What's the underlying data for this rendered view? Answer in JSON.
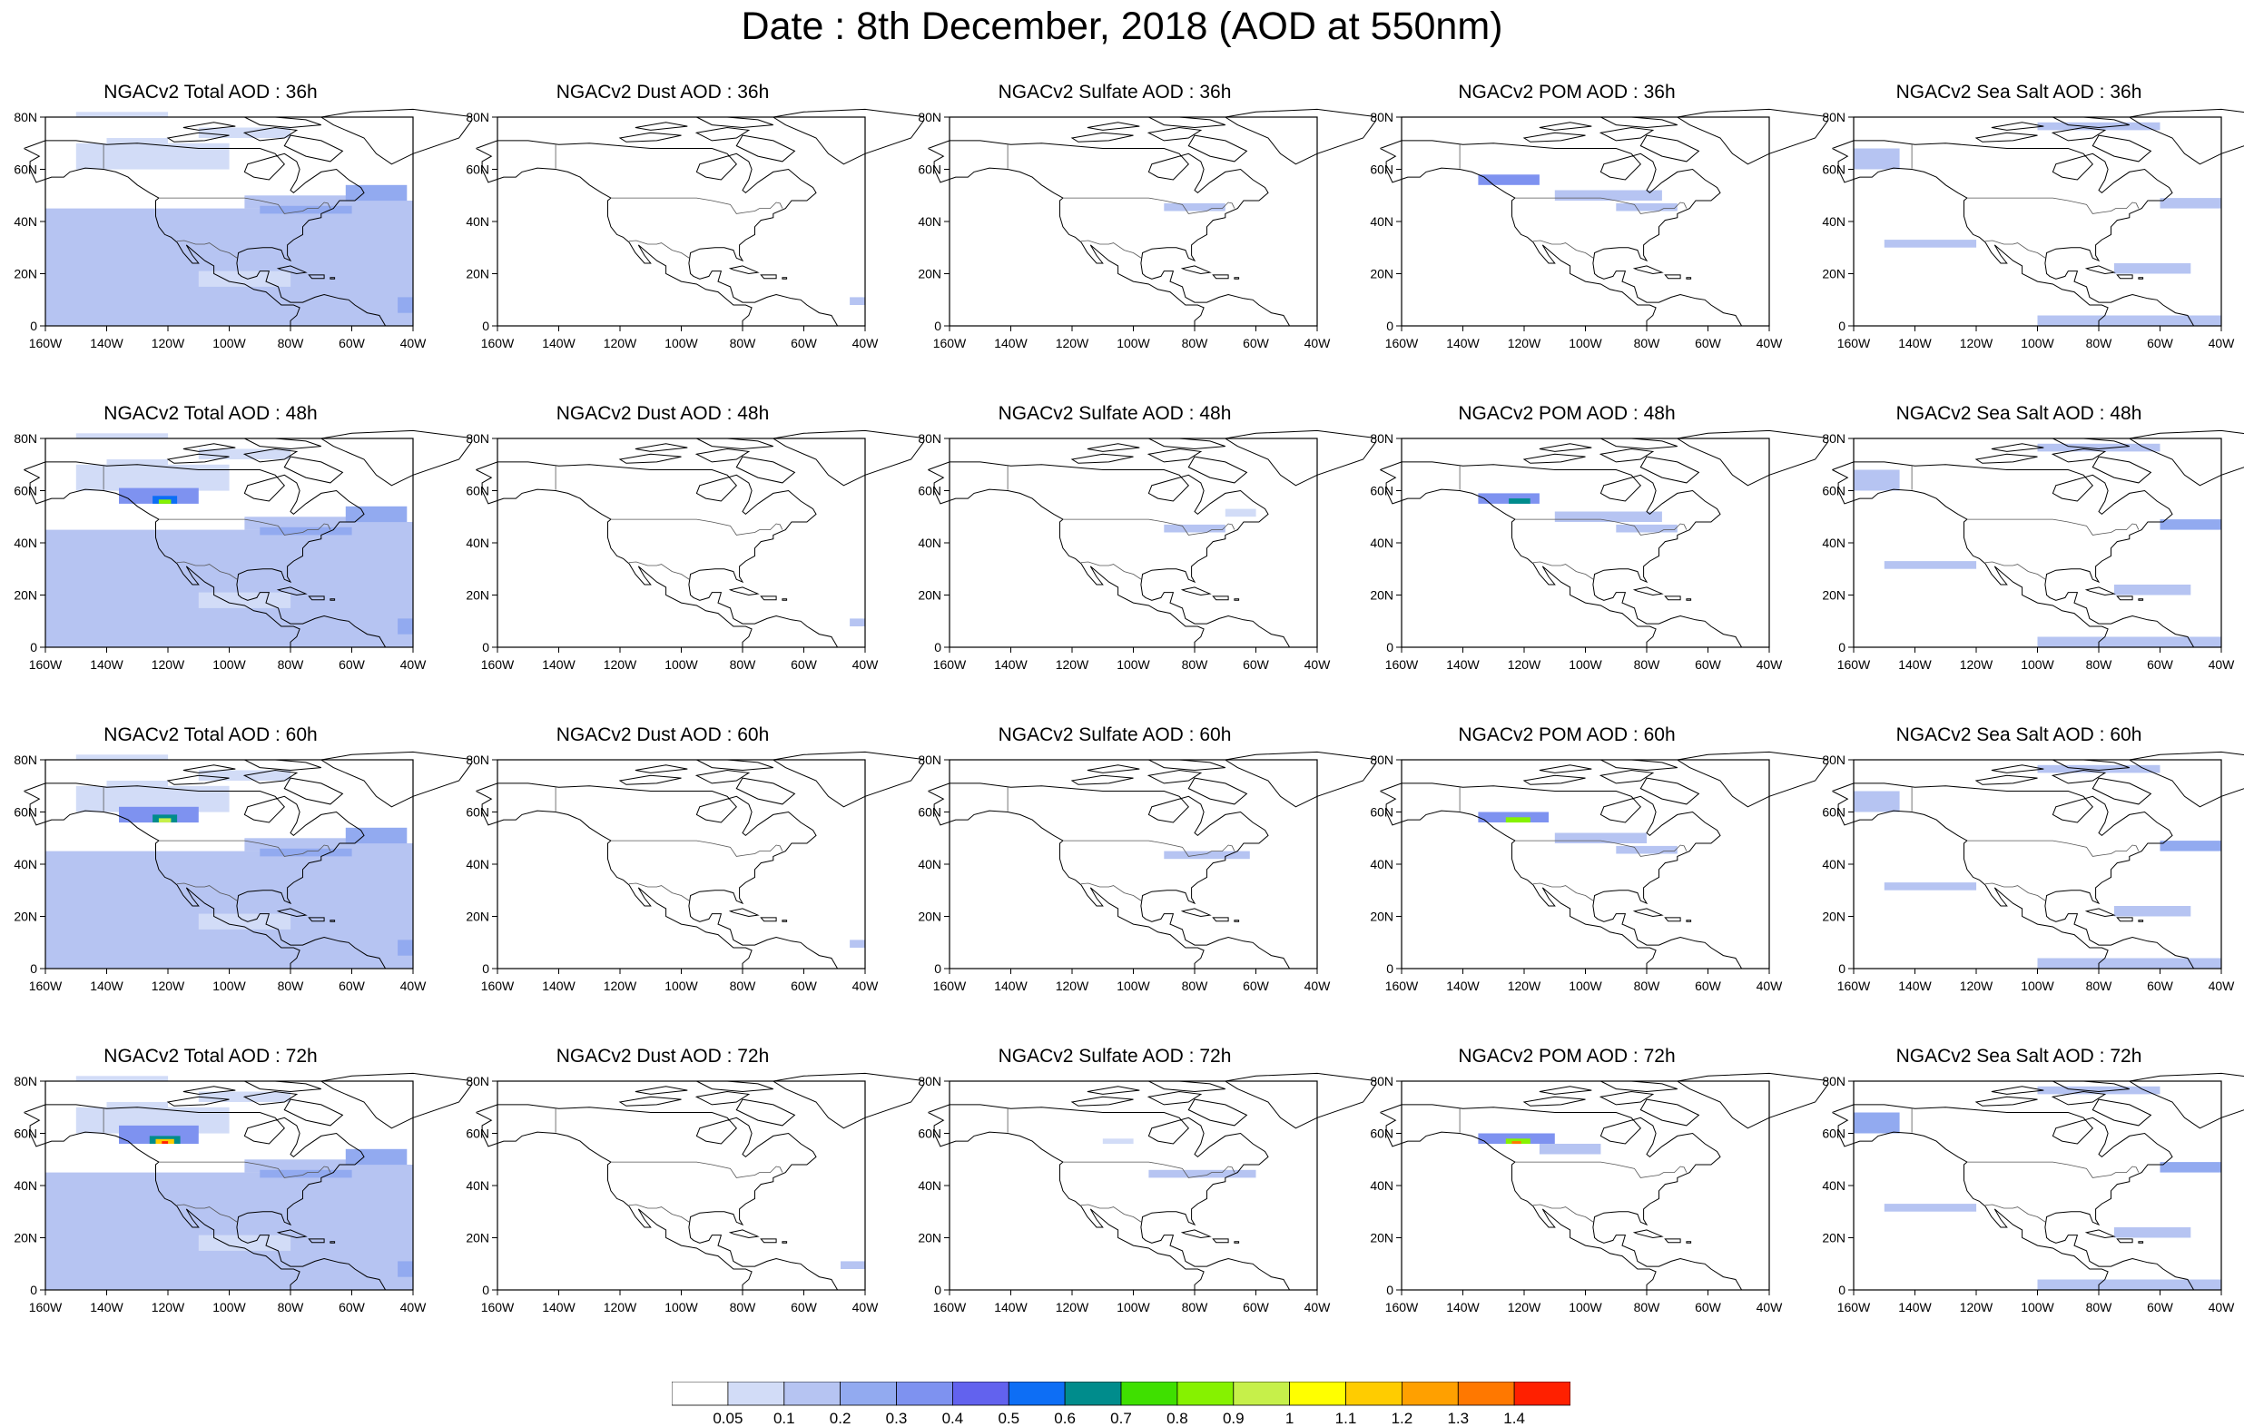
{
  "title": "Date : 8th December, 2018 (AOD at 550nm)",
  "lat_labels": [
    "80N",
    "60N",
    "40N",
    "20N",
    "0"
  ],
  "lon_labels": [
    "160W",
    "140W",
    "120W",
    "100W",
    "80W",
    "60W",
    "40W"
  ],
  "species": [
    {
      "key": "total",
      "name": "Total"
    },
    {
      "key": "dust",
      "name": "Dust"
    },
    {
      "key": "sulfate",
      "name": "Sulfate"
    },
    {
      "key": "pom",
      "name": "POM"
    },
    {
      "key": "seasalt",
      "name": "Sea Salt"
    }
  ],
  "panels": [
    [
      "NGACv2 Total AOD : 36h",
      "NGACv2 Dust AOD : 36h",
      "NGACv2 Sulfate AOD : 36h",
      "NGACv2 POM AOD : 36h",
      "NGACv2 Sea Salt AOD : 36h"
    ],
    [
      "NGACv2 Total AOD : 48h",
      "NGACv2 Dust AOD : 48h",
      "NGACv2 Sulfate AOD : 48h",
      "NGACv2 POM AOD : 48h",
      "NGACv2 Sea Salt AOD : 48h"
    ],
    [
      "NGACv2 Total AOD : 60h",
      "NGACv2 Dust AOD : 60h",
      "NGACv2 Sulfate AOD : 60h",
      "NGACv2 POM AOD : 60h",
      "NGACv2 Sea Salt AOD : 60h"
    ],
    [
      "NGACv2 Total AOD : 72h",
      "NGACv2 Dust AOD : 72h",
      "NGACv2 Sulfate AOD : 72h",
      "NGACv2 POM AOD : 72h",
      "NGACv2 Sea Salt  AOD : 72h"
    ]
  ],
  "colorbar": {
    "labels": [
      "0.05",
      "0.1",
      "0.2",
      "0.3",
      "0.4",
      "0.5",
      "0.6",
      "0.7",
      "0.8",
      "0.9",
      "1",
      "1.1",
      "1.2",
      "1.3",
      "1.4"
    ],
    "colors": [
      "#ffffff",
      "#d2dcf7",
      "#b6c4f2",
      "#92aaf0",
      "#7e92f0",
      "#6262ee",
      "#0d6ef5",
      "#008c8c",
      "#3fe000",
      "#86f200",
      "#c6f04a",
      "#ffff00",
      "#ffcc00",
      "#ffa000",
      "#ff7800",
      "#ff2000"
    ]
  },
  "features": {
    "total": [
      [
        [
          0,
          45,
          -160,
          -40,
          0.1
        ],
        [
          0,
          6,
          -160,
          -40,
          0.1
        ],
        [
          20,
          6,
          -150,
          -120,
          0.1
        ],
        [
          30,
          8,
          -130,
          -105,
          0.1
        ],
        [
          45,
          5,
          -95,
          -60,
          0.1
        ],
        [
          40,
          8,
          -60,
          -40,
          0.1
        ],
        [
          30,
          3,
          -150,
          -120,
          0.1
        ],
        [
          43,
          3,
          -90,
          -60,
          0.2
        ],
        [
          60,
          10,
          -150,
          -100,
          0.05
        ],
        [
          68,
          4,
          -140,
          -120,
          0.05
        ],
        [
          72,
          4,
          -110,
          -80,
          0.05
        ],
        [
          15,
          6,
          -110,
          -80,
          0.05
        ],
        [
          48,
          6,
          -62,
          -42,
          0.2
        ],
        [
          5,
          6,
          -45,
          -40,
          0.2
        ],
        [
          80,
          2,
          -150,
          -120,
          0.05
        ]
      ],
      [
        [
          0,
          45,
          -160,
          -40,
          0.1
        ],
        [
          0,
          6,
          -160,
          -40,
          0.1
        ],
        [
          20,
          6,
          -150,
          -120,
          0.1
        ],
        [
          30,
          8,
          -130,
          -105,
          0.1
        ],
        [
          45,
          5,
          -95,
          -60,
          0.1
        ],
        [
          40,
          8,
          -60,
          -40,
          0.1
        ],
        [
          30,
          3,
          -150,
          -120,
          0.1
        ],
        [
          43,
          3,
          -90,
          -60,
          0.2
        ],
        [
          60,
          10,
          -150,
          -100,
          0.05
        ],
        [
          68,
          4,
          -140,
          -120,
          0.05
        ],
        [
          72,
          4,
          -110,
          -80,
          0.05
        ],
        [
          15,
          6,
          -110,
          -80,
          0.05
        ],
        [
          48,
          6,
          -62,
          -42,
          0.2
        ],
        [
          5,
          6,
          -45,
          -40,
          0.2
        ],
        [
          80,
          2,
          -150,
          -120,
          0.05
        ],
        [
          55,
          6,
          -136,
          -110,
          0.3
        ],
        [
          55,
          3,
          -125,
          -117,
          0.5
        ],
        [
          55,
          1.6,
          -123,
          -119,
          0.8
        ]
      ],
      [
        [
          0,
          45,
          -160,
          -40,
          0.1
        ],
        [
          0,
          6,
          -160,
          -40,
          0.1
        ],
        [
          20,
          6,
          -150,
          -120,
          0.1
        ],
        [
          30,
          8,
          -130,
          -105,
          0.1
        ],
        [
          45,
          5,
          -95,
          -60,
          0.1
        ],
        [
          40,
          8,
          -60,
          -40,
          0.1
        ],
        [
          30,
          3,
          -150,
          -120,
          0.1
        ],
        [
          43,
          3,
          -90,
          -60,
          0.2
        ],
        [
          60,
          10,
          -150,
          -100,
          0.05
        ],
        [
          68,
          4,
          -140,
          -120,
          0.05
        ],
        [
          72,
          4,
          -110,
          -80,
          0.05
        ],
        [
          15,
          6,
          -110,
          -80,
          0.05
        ],
        [
          48,
          6,
          -62,
          -42,
          0.2
        ],
        [
          5,
          6,
          -45,
          -40,
          0.2
        ],
        [
          80,
          2,
          -150,
          -120,
          0.05
        ],
        [
          56,
          6,
          -136,
          -110,
          0.3
        ],
        [
          56,
          3,
          -125,
          -117,
          0.6
        ],
        [
          56,
          1.6,
          -123,
          -119,
          0.9
        ]
      ],
      [
        [
          0,
          45,
          -160,
          -40,
          0.1
        ],
        [
          0,
          6,
          -160,
          -40,
          0.1
        ],
        [
          20,
          6,
          -150,
          -120,
          0.1
        ],
        [
          30,
          8,
          -130,
          -105,
          0.1
        ],
        [
          45,
          5,
          -95,
          -60,
          0.1
        ],
        [
          40,
          8,
          -60,
          -40,
          0.1
        ],
        [
          30,
          3,
          -150,
          -120,
          0.1
        ],
        [
          43,
          3,
          -90,
          -60,
          0.2
        ],
        [
          60,
          10,
          -150,
          -100,
          0.05
        ],
        [
          68,
          4,
          -140,
          -120,
          0.05
        ],
        [
          72,
          4,
          -110,
          -80,
          0.05
        ],
        [
          15,
          6,
          -110,
          -80,
          0.05
        ],
        [
          48,
          6,
          -62,
          -42,
          0.2
        ],
        [
          5,
          6,
          -45,
          -40,
          0.2
        ],
        [
          80,
          2,
          -150,
          -120,
          0.05
        ],
        [
          56,
          7,
          -136,
          -110,
          0.3
        ],
        [
          56,
          3,
          -126,
          -116,
          0.6
        ],
        [
          56,
          1.8,
          -124,
          -118,
          1.1
        ],
        [
          56,
          1,
          -122,
          -120,
          1.4
        ]
      ]
    ],
    "dust": [
      [
        [
          8,
          3,
          -45,
          -40,
          0.1
        ]
      ],
      [
        [
          8,
          3,
          -45,
          -40,
          0.1
        ]
      ],
      [
        [
          8,
          3,
          -45,
          -40,
          0.1
        ]
      ],
      [
        [
          8,
          3,
          -48,
          -40,
          0.1
        ]
      ]
    ],
    "sulfate": [
      [
        [
          44,
          3,
          -90,
          -70,
          0.1
        ]
      ],
      [
        [
          44,
          3,
          -90,
          -70,
          0.1
        ],
        [
          50,
          3,
          -70,
          -60,
          0.05
        ]
      ],
      [
        [
          42,
          3,
          -90,
          -62,
          0.1
        ]
      ],
      [
        [
          43,
          3,
          -95,
          -60,
          0.1
        ],
        [
          56,
          2,
          -110,
          -100,
          0.05
        ]
      ]
    ],
    "pom": [
      [
        [
          54,
          4,
          -135,
          -115,
          0.3
        ],
        [
          48,
          4,
          -110,
          -75,
          0.1
        ],
        [
          44,
          3,
          -90,
          -70,
          0.1
        ]
      ],
      [
        [
          55,
          4,
          -135,
          -115,
          0.3
        ],
        [
          55,
          2,
          -125,
          -118,
          0.6
        ],
        [
          48,
          4,
          -110,
          -75,
          0.1
        ],
        [
          44,
          3,
          -90,
          -70,
          0.1
        ]
      ],
      [
        [
          56,
          4,
          -135,
          -112,
          0.3
        ],
        [
          56,
          2,
          -126,
          -118,
          0.8
        ],
        [
          48,
          4,
          -110,
          -80,
          0.1
        ],
        [
          44,
          3,
          -90,
          -70,
          0.1
        ]
      ],
      [
        [
          56,
          4,
          -135,
          -110,
          0.3
        ],
        [
          56,
          2,
          -126,
          -118,
          0.8
        ],
        [
          56,
          1,
          -124,
          -121,
          1.3
        ],
        [
          52,
          4,
          -115,
          -95,
          0.1
        ]
      ]
    ],
    "seasalt": [
      [
        [
          60,
          8,
          -160,
          -145,
          0.1
        ],
        [
          45,
          4,
          -60,
          -40,
          0.1
        ],
        [
          30,
          3,
          -150,
          -120,
          0.1
        ],
        [
          20,
          4,
          -75,
          -50,
          0.1
        ],
        [
          0,
          4,
          -100,
          -40,
          0.1
        ],
        [
          75,
          3,
          -100,
          -60,
          0.1
        ]
      ],
      [
        [
          60,
          8,
          -160,
          -145,
          0.1
        ],
        [
          45,
          4,
          -60,
          -40,
          0.2
        ],
        [
          30,
          3,
          -150,
          -120,
          0.1
        ],
        [
          20,
          4,
          -75,
          -50,
          0.1
        ],
        [
          0,
          4,
          -100,
          -40,
          0.1
        ],
        [
          75,
          3,
          -100,
          -60,
          0.1
        ]
      ],
      [
        [
          60,
          8,
          -160,
          -145,
          0.1
        ],
        [
          45,
          4,
          -60,
          -40,
          0.2
        ],
        [
          30,
          3,
          -150,
          -120,
          0.1
        ],
        [
          20,
          4,
          -75,
          -50,
          0.1
        ],
        [
          0,
          4,
          -100,
          -40,
          0.1
        ],
        [
          75,
          3,
          -100,
          -60,
          0.1
        ]
      ],
      [
        [
          60,
          8,
          -160,
          -145,
          0.2
        ],
        [
          45,
          4,
          -60,
          -40,
          0.2
        ],
        [
          30,
          3,
          -150,
          -120,
          0.1
        ],
        [
          20,
          4,
          -75,
          -50,
          0.1
        ],
        [
          0,
          4,
          -100,
          -40,
          0.1
        ],
        [
          75,
          3,
          -100,
          -60,
          0.1
        ]
      ]
    ]
  }
}
